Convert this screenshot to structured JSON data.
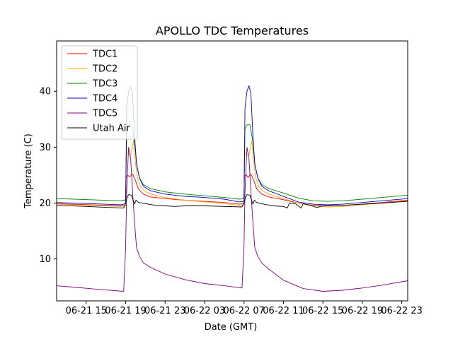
{
  "chart_data": {
    "type": "line",
    "title": "APOLLO TDC Temperatures",
    "xlabel": "Date (GMT)",
    "ylabel": "Temperature (C)",
    "xlim": [
      12,
      47.6
    ],
    "ylim": [
      2.5,
      49
    ],
    "x_tick_values": [
      15,
      19,
      23,
      27,
      31,
      35,
      39,
      43,
      47
    ],
    "x_tick_labels": [
      "06-21 15",
      "06-21 19",
      "06-21 23",
      "06-22 03",
      "06-22 07",
      "06-22 11",
      "06-22 15",
      "06-22 19",
      "06-22 23"
    ],
    "y_tick_values": [
      10,
      20,
      30,
      40
    ],
    "y_tick_labels": [
      "10",
      "20",
      "30",
      "40"
    ],
    "grid": false,
    "legend_position": "top-left",
    "series": [
      {
        "name": "TDC1",
        "color": "#ff0000",
        "x": [
          12,
          18.5,
          19.0,
          19.05,
          19.2,
          19.4,
          19.7,
          20.0,
          20.3,
          20.8,
          21.5,
          23,
          25,
          27,
          29,
          30.5,
          31.0,
          31.05,
          31.2,
          31.4,
          31.7,
          32.0,
          32.3,
          32.8,
          33.5,
          35,
          36.5,
          38,
          39.5,
          41,
          43,
          45,
          47.6
        ],
        "values": [
          19.9,
          19.5,
          19.6,
          24.6,
          25.0,
          24.7,
          25.2,
          24.0,
          22.5,
          21.6,
          21.1,
          20.8,
          20.5,
          20.3,
          20.1,
          19.8,
          19.9,
          24.8,
          25.1,
          24.6,
          25.2,
          24.0,
          22.5,
          21.6,
          21.1,
          20.6,
          20.0,
          19.6,
          19.5,
          19.6,
          19.8,
          20.1,
          20.5
        ]
      },
      {
        "name": "TDC2",
        "color": "#ffa500",
        "x": [
          12,
          18.5,
          19.0,
          19.05,
          19.2,
          19.5,
          19.8,
          20.0,
          20.2,
          20.5,
          20.9,
          21.5,
          23,
          25,
          27,
          29,
          30.5,
          31.0,
          31.05,
          31.2,
          31.5,
          31.8,
          32.0,
          32.2,
          32.5,
          32.9,
          33.5,
          35,
          36.5,
          38,
          39.5,
          41,
          43,
          45,
          47.6
        ],
        "values": [
          19.8,
          19.4,
          19.5,
          28.5,
          29.0,
          28.5,
          31.2,
          27.0,
          24.5,
          23.0,
          22.2,
          21.6,
          21.0,
          20.5,
          20.2,
          19.9,
          19.6,
          19.7,
          28.5,
          29.0,
          28.5,
          31.2,
          27.0,
          24.5,
          23.0,
          22.2,
          21.6,
          20.8,
          20.0,
          19.5,
          19.3,
          19.4,
          19.7,
          20.0,
          20.4
        ]
      },
      {
        "name": "TDC3",
        "color": "#008000",
        "x": [
          12,
          18.5,
          19.0,
          19.1,
          19.3,
          19.6,
          19.9,
          20.1,
          20.4,
          20.8,
          21.5,
          23,
          25,
          27,
          29,
          30.5,
          31.0,
          31.1,
          31.3,
          31.6,
          31.9,
          32.1,
          32.4,
          32.8,
          33.5,
          35,
          36.5,
          38,
          39.5,
          41,
          43,
          45,
          47.6
        ],
        "values": [
          20.8,
          20.4,
          20.6,
          33.0,
          34.0,
          34.0,
          31.0,
          27.0,
          24.5,
          23.3,
          22.6,
          22.0,
          21.6,
          21.3,
          21.0,
          20.7,
          20.8,
          33.2,
          34.0,
          34.0,
          31.0,
          27.0,
          24.5,
          23.3,
          22.6,
          21.8,
          20.9,
          20.4,
          20.3,
          20.4,
          20.7,
          21.0,
          21.4
        ]
      },
      {
        "name": "TDC4",
        "color": "#0000cd",
        "x": [
          12,
          18.5,
          19.0,
          19.1,
          19.3,
          19.5,
          19.7,
          19.9,
          20.1,
          20.4,
          20.8,
          21.5,
          23,
          25,
          27,
          29,
          30.5,
          31.0,
          31.1,
          31.3,
          31.5,
          31.7,
          31.9,
          32.1,
          32.4,
          32.8,
          33.5,
          35,
          36.5,
          38,
          39.5,
          41,
          43,
          45,
          47.6
        ],
        "values": [
          20.1,
          19.7,
          19.9,
          37.0,
          40.0,
          40.8,
          39.5,
          32.0,
          27.0,
          24.5,
          23.0,
          22.2,
          21.6,
          21.2,
          21.0,
          20.7,
          20.2,
          20.3,
          37.0,
          40.0,
          41.0,
          39.5,
          32.0,
          27.0,
          24.5,
          23.0,
          22.2,
          21.2,
          20.2,
          19.8,
          19.7,
          19.8,
          20.1,
          20.4,
          20.8
        ]
      },
      {
        "name": "TDC5",
        "color": "#800080",
        "x": [
          12,
          14,
          16,
          18.8,
          19.0,
          19.1,
          19.3,
          19.5,
          19.7,
          19.9,
          20.1,
          20.4,
          20.8,
          21.5,
          23,
          25,
          27,
          29,
          30.8,
          31.0,
          31.1,
          31.3,
          31.5,
          31.7,
          31.9,
          32.1,
          32.4,
          32.8,
          33.5,
          35,
          37,
          39,
          41,
          43,
          45,
          47.6
        ],
        "values": [
          5.2,
          4.9,
          4.6,
          4.2,
          12.0,
          22.0,
          30.0,
          28.0,
          22.0,
          16.5,
          12.0,
          10.5,
          9.3,
          8.5,
          7.3,
          6.3,
          5.6,
          5.2,
          4.8,
          12.0,
          22.0,
          30.0,
          28.0,
          22.0,
          16.5,
          12.0,
          10.5,
          9.3,
          8.2,
          6.2,
          4.7,
          4.2,
          4.4,
          4.8,
          5.3,
          6.1
        ]
      },
      {
        "name": "Utah Air",
        "color": "#000000",
        "x": [
          12,
          15,
          18.8,
          19.0,
          19.15,
          19.3,
          19.6,
          19.9,
          20.05,
          20.3,
          21,
          22,
          23,
          24,
          25,
          27,
          29,
          30.8,
          31.0,
          31.15,
          31.3,
          31.6,
          31.9,
          32.05,
          32.3,
          33,
          34,
          35,
          35.4,
          35.6,
          36.2,
          36.8,
          37.0,
          37.7,
          38.2,
          38.4,
          39,
          41,
          43,
          45,
          47.6
        ],
        "values": [
          19.6,
          19.4,
          19.1,
          20.0,
          21.0,
          21.5,
          21.4,
          19.8,
          20.5,
          20.1,
          19.9,
          19.6,
          19.5,
          19.4,
          19.5,
          19.5,
          19.4,
          19.3,
          20.0,
          21.0,
          21.5,
          21.4,
          19.8,
          20.5,
          20.1,
          19.8,
          19.5,
          19.4,
          19.1,
          20.0,
          19.9,
          19.1,
          19.9,
          19.6,
          19.3,
          19.2,
          19.5,
          19.6,
          19.8,
          20.0,
          20.3
        ]
      }
    ]
  }
}
